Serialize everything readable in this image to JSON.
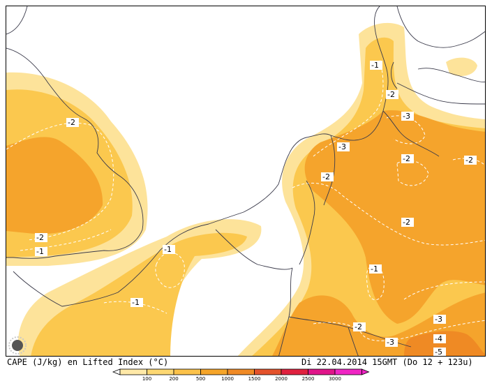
{
  "caption": {
    "left": "CAPE (J/kg) en Lifted Index (°C)",
    "right": "Di 22.04.2014 15GMT (Do 12 + 123u)"
  },
  "legend": {
    "values": [
      "100",
      "200",
      "500",
      "1000",
      "1500",
      "2000",
      "2500",
      "3000"
    ],
    "colors": [
      "#ffe9a8",
      "#fdd873",
      "#fbc24a",
      "#f6a529",
      "#f08a25",
      "#e4522b",
      "#e0213f",
      "#e0158a",
      "#f025c4"
    ]
  },
  "contour_labels": [
    "-1",
    "-2",
    "-2",
    "-1",
    "-1",
    "-1",
    "-2",
    "-3",
    "-3",
    "-2",
    "-2",
    "-2",
    "-2",
    "-1",
    "-2",
    "-3",
    "-3",
    "-4",
    "-5"
  ],
  "colors": {
    "cape_100_200": "#fde39a",
    "cape_200_500": "#fbc84e",
    "cape_500_1000": "#f5a42c",
    "cape_1000_1500": "#ef8a24",
    "coastline": "#3a3a4a",
    "isoline": "#ffffff"
  }
}
